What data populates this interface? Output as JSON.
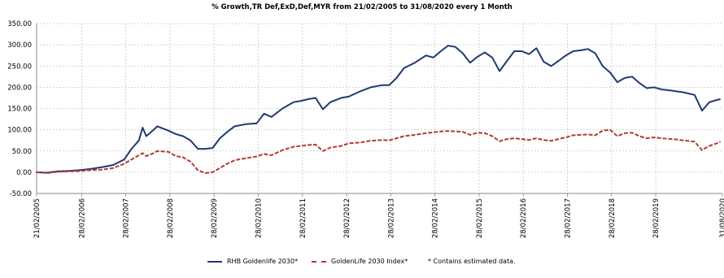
{
  "chart_data": {
    "type": "line",
    "title": "% Growth,TR Def,ExD,Def,MYR from 21/02/2005 to 31/08/2020 every 1 Month",
    "ylim": [
      -50,
      350
    ],
    "y_ticks": [
      -50,
      0,
      50,
      100,
      150,
      200,
      250,
      300,
      350
    ],
    "y_tick_labels": [
      "-50.00",
      "0.00",
      "50.00",
      "100.00",
      "150.00",
      "200.00",
      "250.00",
      "300.00",
      "350.00"
    ],
    "xlim": [
      "2005-02-21",
      "2020-08-31"
    ],
    "x_tick_labels": [
      "21/02/2005",
      "28/02/2006",
      "28/02/2007",
      "28/02/2008",
      "28/02/2009",
      "28/02/2010",
      "28/02/2011",
      "28/02/2012",
      "28/02/2013",
      "28/02/2014",
      "28/02/2015",
      "28/02/2016",
      "28/02/2017",
      "28/02/2018",
      "28/02/2019",
      "31/08/2020"
    ],
    "grid": true,
    "legend_position": "bottom",
    "series": [
      {
        "name": "RHB Goldenlife 2030*",
        "color": "#1f3a6e",
        "dash": "solid",
        "points": [
          [
            "2005-02",
            0
          ],
          [
            "2005-05",
            -1
          ],
          [
            "2005-08",
            2
          ],
          [
            "2005-11",
            3
          ],
          [
            "2006-02",
            5
          ],
          [
            "2006-05",
            8
          ],
          [
            "2006-08",
            12
          ],
          [
            "2006-11",
            17
          ],
          [
            "2007-02",
            30
          ],
          [
            "2007-04",
            55
          ],
          [
            "2007-06",
            75
          ],
          [
            "2007-07",
            105
          ],
          [
            "2007-08",
            85
          ],
          [
            "2007-10",
            100
          ],
          [
            "2007-11",
            108
          ],
          [
            "2008-02",
            98
          ],
          [
            "2008-04",
            90
          ],
          [
            "2008-06",
            85
          ],
          [
            "2008-08",
            75
          ],
          [
            "2008-10",
            55
          ],
          [
            "2008-12",
            55
          ],
          [
            "2009-02",
            57
          ],
          [
            "2009-04",
            80
          ],
          [
            "2009-06",
            95
          ],
          [
            "2009-08",
            108
          ],
          [
            "2009-11",
            113
          ],
          [
            "2010-02",
            115
          ],
          [
            "2010-04",
            138
          ],
          [
            "2010-06",
            130
          ],
          [
            "2010-09",
            150
          ],
          [
            "2010-12",
            165
          ],
          [
            "2011-02",
            168
          ],
          [
            "2011-04",
            172
          ],
          [
            "2011-06",
            175
          ],
          [
            "2011-08",
            148
          ],
          [
            "2011-10",
            165
          ],
          [
            "2012-01",
            175
          ],
          [
            "2012-03",
            178
          ],
          [
            "2012-06",
            190
          ],
          [
            "2012-09",
            200
          ],
          [
            "2012-12",
            205
          ],
          [
            "2013-02",
            205
          ],
          [
            "2013-04",
            222
          ],
          [
            "2013-06",
            245
          ],
          [
            "2013-09",
            258
          ],
          [
            "2013-12",
            275
          ],
          [
            "2014-02",
            270
          ],
          [
            "2014-04",
            285
          ],
          [
            "2014-06",
            298
          ],
          [
            "2014-08",
            295
          ],
          [
            "2014-10",
            280
          ],
          [
            "2014-12",
            258
          ],
          [
            "2015-02",
            272
          ],
          [
            "2015-04",
            282
          ],
          [
            "2015-06",
            270
          ],
          [
            "2015-08",
            238
          ],
          [
            "2015-10",
            262
          ],
          [
            "2015-12",
            285
          ],
          [
            "2016-02",
            285
          ],
          [
            "2016-04",
            278
          ],
          [
            "2016-06",
            292
          ],
          [
            "2016-08",
            260
          ],
          [
            "2016-10",
            250
          ],
          [
            "2016-12",
            262
          ],
          [
            "2017-02",
            275
          ],
          [
            "2017-04",
            285
          ],
          [
            "2017-06",
            287
          ],
          [
            "2017-08",
            290
          ],
          [
            "2017-10",
            280
          ],
          [
            "2017-12",
            250
          ],
          [
            "2018-02",
            235
          ],
          [
            "2018-04",
            212
          ],
          [
            "2018-06",
            222
          ],
          [
            "2018-08",
            225
          ],
          [
            "2018-10",
            210
          ],
          [
            "2018-12",
            198
          ],
          [
            "2019-02",
            200
          ],
          [
            "2019-04",
            195
          ],
          [
            "2019-07",
            192
          ],
          [
            "2019-10",
            188
          ],
          [
            "2020-01",
            182
          ],
          [
            "2020-03",
            145
          ],
          [
            "2020-05",
            165
          ],
          [
            "2020-07",
            170
          ],
          [
            "2020-08",
            172
          ]
        ]
      },
      {
        "name": "GoldenLife 2030 Index*",
        "color": "#b23b32",
        "dash": "dashed",
        "points": [
          [
            "2005-02",
            0
          ],
          [
            "2005-05",
            -2
          ],
          [
            "2005-08",
            1
          ],
          [
            "2005-11",
            2
          ],
          [
            "2006-02",
            3
          ],
          [
            "2006-05",
            5
          ],
          [
            "2006-08",
            6
          ],
          [
            "2006-11",
            10
          ],
          [
            "2007-02",
            20
          ],
          [
            "2007-04",
            30
          ],
          [
            "2007-06",
            40
          ],
          [
            "2007-07",
            45
          ],
          [
            "2007-08",
            38
          ],
          [
            "2007-10",
            45
          ],
          [
            "2007-11",
            50
          ],
          [
            "2008-02",
            48
          ],
          [
            "2008-04",
            38
          ],
          [
            "2008-06",
            35
          ],
          [
            "2008-08",
            25
          ],
          [
            "2008-10",
            5
          ],
          [
            "2008-12",
            -2
          ],
          [
            "2009-02",
            0
          ],
          [
            "2009-04",
            10
          ],
          [
            "2009-06",
            20
          ],
          [
            "2009-08",
            28
          ],
          [
            "2009-11",
            33
          ],
          [
            "2010-02",
            37
          ],
          [
            "2010-04",
            43
          ],
          [
            "2010-06",
            40
          ],
          [
            "2010-09",
            52
          ],
          [
            "2010-12",
            60
          ],
          [
            "2011-02",
            62
          ],
          [
            "2011-04",
            64
          ],
          [
            "2011-06",
            65
          ],
          [
            "2011-08",
            50
          ],
          [
            "2011-10",
            58
          ],
          [
            "2012-01",
            62
          ],
          [
            "2012-03",
            68
          ],
          [
            "2012-06",
            70
          ],
          [
            "2012-09",
            74
          ],
          [
            "2012-12",
            76
          ],
          [
            "2013-02",
            75
          ],
          [
            "2013-04",
            80
          ],
          [
            "2013-06",
            85
          ],
          [
            "2013-09",
            88
          ],
          [
            "2013-12",
            92
          ],
          [
            "2014-02",
            94
          ],
          [
            "2014-04",
            96
          ],
          [
            "2014-06",
            97
          ],
          [
            "2014-08",
            96
          ],
          [
            "2014-10",
            95
          ],
          [
            "2014-12",
            88
          ],
          [
            "2015-02",
            93
          ],
          [
            "2015-04",
            92
          ],
          [
            "2015-06",
            85
          ],
          [
            "2015-08",
            73
          ],
          [
            "2015-10",
            78
          ],
          [
            "2015-12",
            80
          ],
          [
            "2016-02",
            78
          ],
          [
            "2016-04",
            76
          ],
          [
            "2016-06",
            80
          ],
          [
            "2016-08",
            76
          ],
          [
            "2016-10",
            74
          ],
          [
            "2016-12",
            78
          ],
          [
            "2017-02",
            82
          ],
          [
            "2017-04",
            87
          ],
          [
            "2017-06",
            88
          ],
          [
            "2017-08",
            89
          ],
          [
            "2017-10",
            87
          ],
          [
            "2017-12",
            98
          ],
          [
            "2018-02",
            100
          ],
          [
            "2018-04",
            85
          ],
          [
            "2018-06",
            92
          ],
          [
            "2018-08",
            93
          ],
          [
            "2018-10",
            85
          ],
          [
            "2018-12",
            80
          ],
          [
            "2019-02",
            82
          ],
          [
            "2019-04",
            80
          ],
          [
            "2019-07",
            78
          ],
          [
            "2019-10",
            75
          ],
          [
            "2020-01",
            72
          ],
          [
            "2020-03",
            52
          ],
          [
            "2020-05",
            62
          ],
          [
            "2020-07",
            68
          ],
          [
            "2020-08",
            72
          ]
        ]
      }
    ]
  },
  "legend": {
    "note": "* Contains estimated data."
  }
}
